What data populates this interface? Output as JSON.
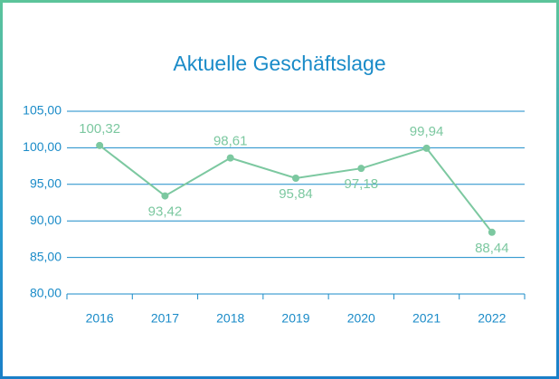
{
  "chart_data": {
    "type": "line",
    "title": "Aktuelle Geschäftslage",
    "categories": [
      "2016",
      "2017",
      "2018",
      "2019",
      "2020",
      "2021",
      "2022"
    ],
    "series": [
      {
        "color": "#7cc8a0",
        "values": [
          100.32,
          93.42,
          98.61,
          95.84,
          97.18,
          99.94,
          88.44
        ],
        "value_labels": [
          "100,32",
          "93,42",
          "98,61",
          "95,84",
          "97,18",
          "99,94",
          "88,44"
        ]
      }
    ],
    "ylim": [
      80,
      105
    ],
    "yticks": [
      {
        "value": 80,
        "label": "80,00"
      },
      {
        "value": 85,
        "label": "85,00"
      },
      {
        "value": 90,
        "label": "90,00"
      },
      {
        "value": 95,
        "label": "95,00"
      },
      {
        "value": 100,
        "label": "100,00"
      },
      {
        "value": 105,
        "label": "105,00"
      }
    ],
    "grid": true
  }
}
